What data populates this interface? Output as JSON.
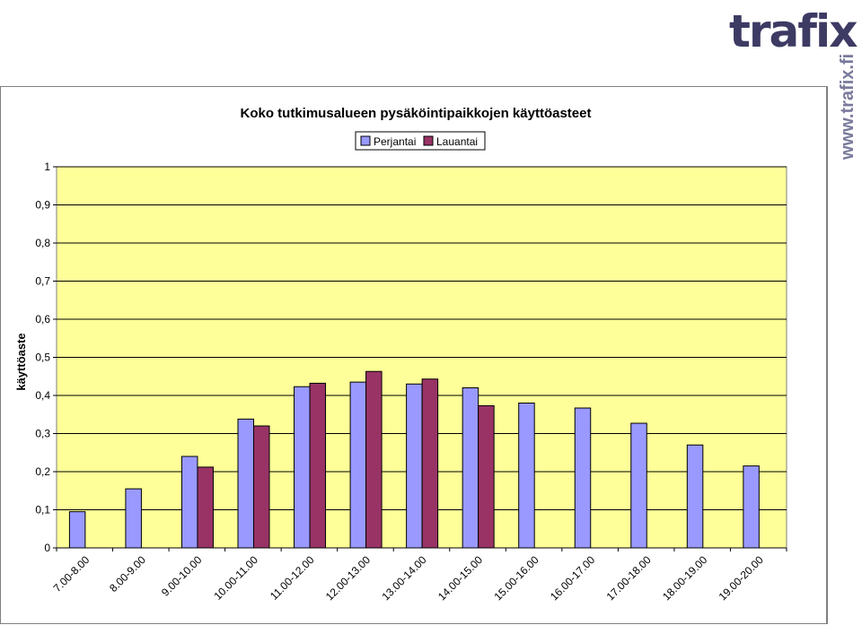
{
  "logo": {
    "text": "trafix",
    "url": "www.trafix.fi",
    "color": "#3d3b63",
    "accent": "#e25a2c"
  },
  "chart_data": {
    "type": "bar",
    "title": "Koko tutkimusalueen pysäköintipaikkojen käyttöasteet",
    "xlabel": "",
    "ylabel": "käyttöaste",
    "ylim": [
      0,
      1
    ],
    "yticks": [
      "0",
      "0,1",
      "0,2",
      "0,3",
      "0,4",
      "0,5",
      "0,6",
      "0,7",
      "0,8",
      "0,9",
      "1"
    ],
    "grid": true,
    "legend_position": "top",
    "plot_background": "#ffff99",
    "categories": [
      "7.00-8.00",
      "8.00-9.00",
      "9.00-10.00",
      "10.00-11.00",
      "11.00-12.00",
      "12.00-13.00",
      "13.00-14.00",
      "14.00-15.00",
      "15.00-16.00",
      "16.00-17.00",
      "17.00-18.00",
      "18.00-19.00",
      "19.00-20.00"
    ],
    "series": [
      {
        "name": "Perjantai",
        "color": "#9999ff",
        "values": [
          0.095,
          0.155,
          0.24,
          0.338,
          0.423,
          0.435,
          0.43,
          0.42,
          0.38,
          0.367,
          0.327,
          0.27,
          0.215
        ]
      },
      {
        "name": "Lauantai",
        "color": "#993366",
        "values": [
          null,
          null,
          0.212,
          0.32,
          0.432,
          0.463,
          0.443,
          0.373,
          null,
          null,
          null,
          null,
          null
        ]
      }
    ]
  }
}
